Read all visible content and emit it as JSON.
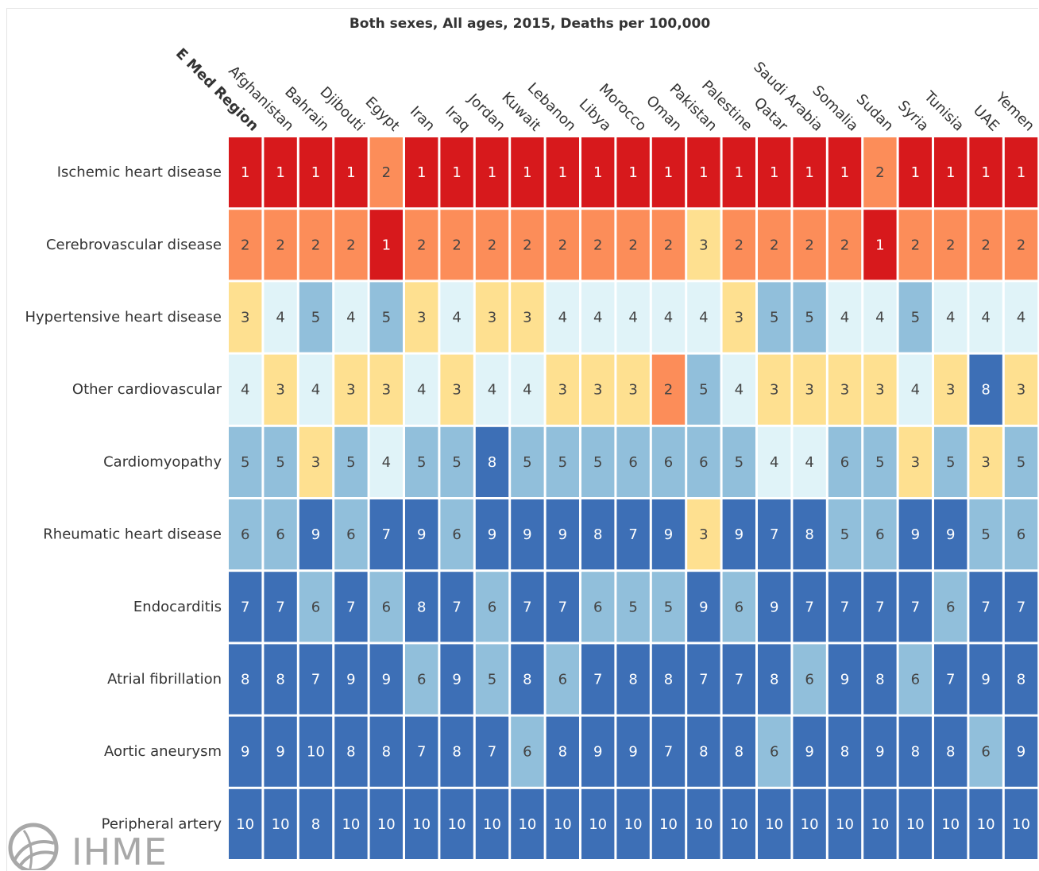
{
  "chart_data": {
    "type": "heatmap",
    "title": "Both sexes, All ages, 2015, Deaths per 100,000",
    "region_label": "E Med Region",
    "columns": [
      "Afghanistan",
      "Bahrain",
      "Djibouti",
      "Egypt",
      "Iran",
      "Iraq",
      "Jordan",
      "Kuwait",
      "Lebanon",
      "Libya",
      "Morocco",
      "Oman",
      "Pakistan",
      "Palestine",
      "Qatar",
      "Saudi Arabia",
      "Somalia",
      "Sudan",
      "Syria",
      "Tunisia",
      "UAE",
      "Yemen"
    ],
    "rows": [
      "Ischemic heart disease",
      "Cerebrovascular disease",
      "Hypertensive heart disease",
      "Other cardiovascular",
      "Cardiomyopathy",
      "Rheumatic heart disease",
      "Endocarditis",
      "Atrial fibrillation",
      "Aortic aneurysm",
      "Peripheral artery"
    ],
    "region_values": [
      1,
      2,
      3,
      4,
      5,
      6,
      7,
      8,
      9,
      10
    ],
    "values": [
      [
        1,
        1,
        1,
        2,
        1,
        1,
        1,
        1,
        1,
        1,
        1,
        1,
        1,
        1,
        1,
        1,
        1,
        2,
        1,
        1,
        1,
        1
      ],
      [
        2,
        2,
        2,
        1,
        2,
        2,
        2,
        2,
        2,
        2,
        2,
        2,
        3,
        2,
        2,
        2,
        2,
        1,
        2,
        2,
        2,
        2
      ],
      [
        4,
        5,
        4,
        5,
        3,
        4,
        3,
        3,
        4,
        4,
        4,
        4,
        4,
        3,
        5,
        5,
        4,
        4,
        5,
        4,
        4,
        4
      ],
      [
        3,
        4,
        3,
        3,
        4,
        3,
        4,
        4,
        3,
        3,
        3,
        2,
        5,
        4,
        3,
        3,
        3,
        3,
        4,
        3,
        8,
        3
      ],
      [
        5,
        3,
        5,
        4,
        5,
        5,
        8,
        5,
        5,
        5,
        6,
        6,
        6,
        5,
        4,
        4,
        6,
        5,
        3,
        5,
        3,
        5
      ],
      [
        6,
        9,
        6,
        7,
        9,
        6,
        9,
        9,
        9,
        8,
        7,
        9,
        3,
        9,
        7,
        8,
        5,
        6,
        9,
        9,
        5,
        6
      ],
      [
        7,
        6,
        7,
        6,
        8,
        7,
        6,
        7,
        7,
        6,
        5,
        5,
        9,
        6,
        9,
        7,
        7,
        7,
        7,
        6,
        7,
        7
      ],
      [
        8,
        7,
        9,
        9,
        6,
        9,
        5,
        8,
        6,
        7,
        8,
        8,
        7,
        7,
        8,
        6,
        9,
        8,
        6,
        7,
        9,
        8
      ],
      [
        9,
        10,
        8,
        8,
        7,
        8,
        7,
        6,
        8,
        9,
        9,
        7,
        8,
        8,
        6,
        9,
        8,
        9,
        8,
        8,
        6,
        9
      ],
      [
        10,
        8,
        10,
        10,
        10,
        10,
        10,
        10,
        10,
        10,
        10,
        10,
        10,
        10,
        10,
        10,
        10,
        10,
        10,
        10,
        10,
        10
      ]
    ],
    "color_scale": {
      "1": "#d7191c",
      "2": "#fc8d59",
      "3": "#fee090",
      "4": "#e0f3f8",
      "5": "#91bfdb",
      "6": "#91bfdb",
      "7": "#3d6fb6",
      "8": "#3d6fb6",
      "9": "#3d6fb6",
      "10": "#3d6fb6"
    },
    "text_colors": {
      "dark": "#444444",
      "light": "#ffffff"
    }
  },
  "logo": {
    "text": "IHME"
  }
}
